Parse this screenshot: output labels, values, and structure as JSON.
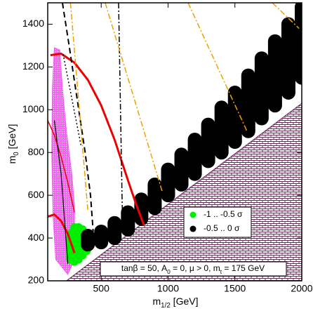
{
  "chart_data": {
    "type": "scatter",
    "xlabel": [
      "m",
      "1/2",
      " [GeV]"
    ],
    "ylabel": [
      "m",
      "0",
      " [GeV]"
    ],
    "annotation": [
      "tanβ = 50, A",
      "0",
      " = 0, μ > 0, m",
      "t",
      " = 175 GeV"
    ],
    "xlim": [
      100,
      2000
    ],
    "ylim": [
      200,
      1500
    ],
    "xticks": [
      500,
      1000,
      1500,
      2000
    ],
    "yticks": [
      200,
      400,
      600,
      800,
      1000,
      1200,
      1400
    ],
    "legend": "lower-right",
    "series": [
      {
        "name": "-1 .. -0.5 σ",
        "color": "#00ee00",
        "x": [
          270,
          300,
          330,
          360,
          390
        ],
        "lower": [
          300,
          290,
          300,
          320,
          340
        ],
        "upper": [
          420,
          450,
          450,
          440,
          420
        ]
      },
      {
        "name": "-0.5 .. 0 σ",
        "color": "#000000",
        "x": [
          400,
          500,
          600,
          700,
          800,
          900,
          1000,
          1100,
          1200,
          1300,
          1400,
          1500,
          1600,
          1700,
          1800,
          1900,
          2000
        ],
        "lower": [
          370,
          380,
          400,
          440,
          490,
          540,
          600,
          650,
          700,
          760,
          800,
          850,
          900,
          960,
          1020,
          1080,
          1150
        ],
        "upper": [
          410,
          430,
          470,
          520,
          580,
          650,
          720,
          790,
          860,
          930,
          1010,
          1080,
          1160,
          1240,
          1320,
          1400,
          1480
        ]
      }
    ],
    "regions": [
      {
        "color": "#ee66ee",
        "x": [
          150,
          190,
          210,
          240,
          280,
          300,
          300,
          250,
          160,
          140,
          130,
          135
        ],
        "y": [
          1290,
          1280,
          1100,
          900,
          700,
          550,
          300,
          230,
          300,
          500,
          800,
          1100
        ]
      },
      {
        "color": "#6b2a5a",
        "x": [
          240,
          2000,
          2000
        ],
        "y": [
          200,
          1030,
          200
        ]
      }
    ],
    "curves": [
      {
        "color": "#ee0000",
        "dash": "none",
        "width": 3,
        "x": [
          120,
          200,
          300,
          400,
          500,
          600,
          700,
          760,
          820
        ],
        "y": [
          1255,
          1262,
          1220,
          1140,
          1020,
          860,
          670,
          560,
          460
        ]
      },
      {
        "color": "#ee0000",
        "dash": "none",
        "width": 1.5,
        "x": [
          100,
          150,
          200,
          250,
          300
        ],
        "y": [
          950,
          880,
          780,
          660,
          520
        ]
      },
      {
        "color": "#ee0000",
        "dash": "none",
        "width": 3,
        "x": [
          100,
          150,
          200,
          250,
          300
        ],
        "y": [
          500,
          510,
          480,
          420,
          330
        ]
      },
      {
        "color": "#000000",
        "dash": "8 5",
        "width": 2,
        "x": [
          210,
          260,
          320,
          380,
          420,
          440
        ],
        "y": [
          1500,
          1300,
          1050,
          800,
          600,
          430
        ]
      },
      {
        "color": "#000000",
        "dash": "8 3 2 3",
        "width": 1.5,
        "x": [
          630,
          660
        ],
        "y": [
          1500,
          450
        ]
      },
      {
        "color": "#000000",
        "dash": "2 3",
        "width": 1.5,
        "x": [
          215,
          350
        ],
        "y": [
          1260,
          830
        ]
      },
      {
        "color": "#000000",
        "dash": "none",
        "width": 1.2,
        "x": [
          150,
          200,
          230,
          250
        ],
        "y": [
          950,
          700,
          450,
          280
        ]
      },
      {
        "color": "#f0a000",
        "dash": "8 3 2 3",
        "width": 1.5,
        "x": [
          270,
          400
        ],
        "y": [
          1500,
          530
        ]
      },
      {
        "color": "#f0a000",
        "dash": "8 3 2 3",
        "width": 1.5,
        "x": [
          530,
          955
        ],
        "y": [
          1500,
          620
        ]
      },
      {
        "color": "#f0a000",
        "dash": "8 3 2 3",
        "width": 1.5,
        "x": [
          1150,
          1590
        ],
        "y": [
          1500,
          900
        ]
      },
      {
        "color": "#f0a000",
        "dash": "8 3 2 3",
        "width": 1.5,
        "x": [
          1780,
          1980
        ],
        "y": [
          1500,
          1380
        ]
      }
    ]
  }
}
